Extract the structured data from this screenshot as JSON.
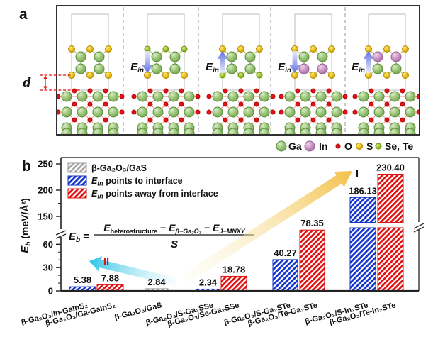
{
  "panel_a": {
    "label": "a",
    "d_label": "d",
    "field_label": {
      "base": "E",
      "sub": "in"
    },
    "structures": [
      {
        "id": "GaS-no-field",
        "field": null,
        "top_atom": "S",
        "bottom_atom": "S",
        "metal_top": "Ga",
        "metal_bottom": "Ga"
      },
      {
        "id": "Janus-field-down",
        "field": "down",
        "top_atom": "Se",
        "bottom_atom": "S",
        "metal_top": "Ga",
        "metal_bottom": "Ga"
      },
      {
        "id": "Janus-field-up",
        "field": "up",
        "top_atom": "S",
        "bottom_atom": "Se",
        "metal_top": "Ga",
        "metal_bottom": "Ga"
      },
      {
        "id": "GaInS2-field-down",
        "field": "down",
        "top_atom": "S",
        "bottom_atom": "S",
        "metal_top": "Ga",
        "metal_bottom": "In"
      },
      {
        "id": "GaInS2-field-up",
        "field": "up",
        "top_atom": "S",
        "bottom_atom": "S",
        "metal_top": "In",
        "metal_bottom": "Ga"
      }
    ],
    "atom_legend": [
      {
        "symbol": "Ga",
        "color": "#8fbe6d",
        "size": "large"
      },
      {
        "symbol": "In",
        "color": "#c487bf",
        "size": "large"
      },
      {
        "symbol": "O",
        "color": "#e01212",
        "size": "small"
      },
      {
        "symbol": "S",
        "color": "#e3b80c",
        "size": "small"
      },
      {
        "symbol": "Se, Te",
        "color": "#8fb919",
        "size": "small"
      }
    ]
  },
  "formula": {
    "lhs": "E",
    "lhs_sub": "b",
    "eq": " =",
    "n1": "E",
    "n1_sub": "heterostructure",
    "op1": " − ",
    "n2": "E",
    "n2_sub": "β−Ga₂O₃",
    "op2": " − ",
    "n3": "E",
    "n3_sub": "J−MNXY",
    "den": "S"
  },
  "chart_data": {
    "type": "bar",
    "panel_label": "b",
    "ylabel": {
      "base": "E",
      "sub": "b",
      "rest": " (meV/Å²)"
    },
    "y_axis": {
      "lower_ticks": [
        0,
        30,
        60
      ],
      "upper_ticks": [
        150,
        200,
        250
      ],
      "has_break": true,
      "break_between": [
        70,
        150
      ]
    },
    "legend": [
      {
        "series": "no_field",
        "label": "β-Ga₂O₃/GaS",
        "color": "#a8a8a8"
      },
      {
        "series": "to_interface",
        "label_e": "E",
        "label_e_sub": "in",
        "label_rest": " points to interface",
        "color": "#1535cc"
      },
      {
        "series": "away_from_interface",
        "label_e": "E",
        "label_e_sub": "in",
        "label_rest": " points away from  interface",
        "color": "#e01212"
      }
    ],
    "bars": [
      {
        "category": "β-Ga₂O₃/In-GaInS₂",
        "value": 5.38,
        "display": "5.38",
        "series": "to_interface"
      },
      {
        "category": "β-Ga₂O₃/Ga-GaInS₂",
        "value": 7.88,
        "display": "7.88",
        "series": "away_from_interface"
      },
      {
        "category": "β-Ga₂O₃/GaS",
        "value": 2.84,
        "display": "2.84",
        "series": "no_field"
      },
      {
        "category": "β-Ga₂O₃/S-Ga₂SSe",
        "value": 2.34,
        "display": "2.34",
        "series": "to_interface"
      },
      {
        "category": "β-Ga₂O₃/Se-Ga₂SSe",
        "value": 18.78,
        "display": "18.78",
        "series": "away_from_interface"
      },
      {
        "category": "β-Ga₂O₃/S-Ga₂STe",
        "value": 40.27,
        "display": "40.27",
        "series": "to_interface"
      },
      {
        "category": "β-Ga₂O₃/Te-Ga₂STe",
        "value": 78.35,
        "display": "78.35",
        "series": "away_from_interface"
      },
      {
        "category": "β-Ga₂O₃/S-In₂STe",
        "value": 186.13,
        "display": "186.13",
        "series": "to_interface"
      },
      {
        "category": "β-Ga₂O₃/Te-In₂STe",
        "value": 230.4,
        "display": "230.40",
        "series": "away_from_interface"
      }
    ],
    "annotations": {
      "region_I": "I",
      "region_II": "II"
    }
  }
}
